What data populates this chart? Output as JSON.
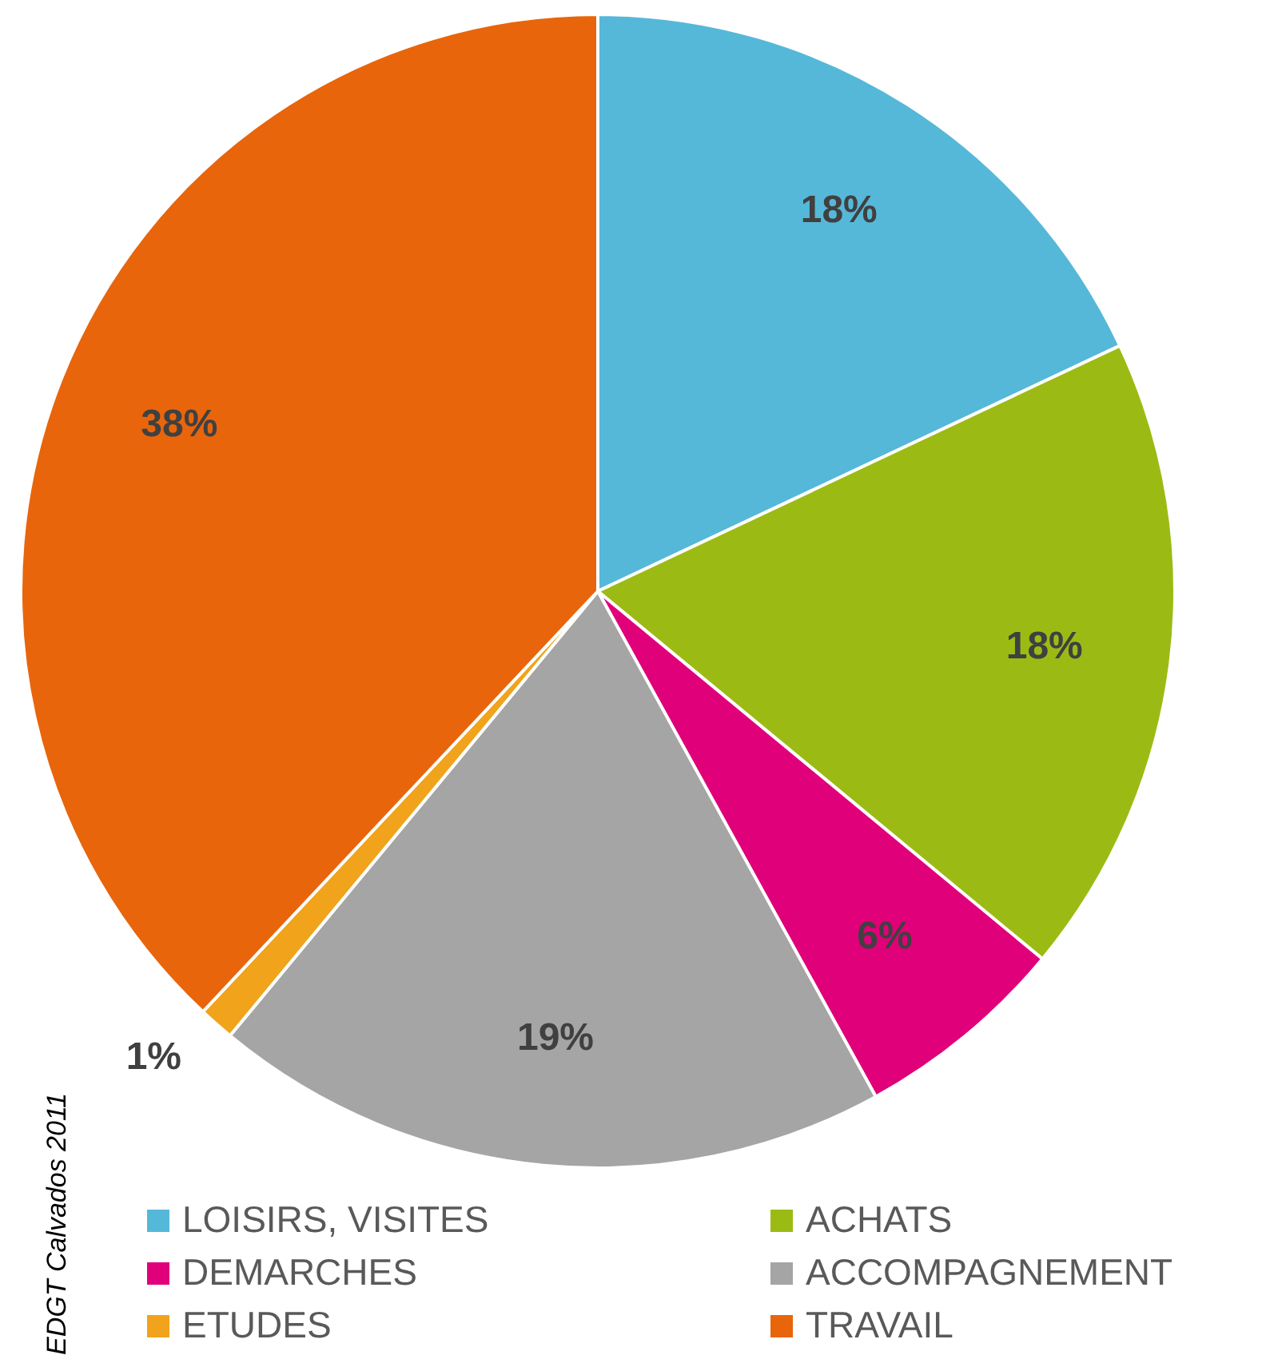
{
  "chart_data": {
    "type": "pie",
    "categories": [
      "LOISIRS, VISITES",
      "ACHATS",
      "DEMARCHES",
      "ACCOMPAGNEMENT",
      "ETUDES",
      "TRAVAIL"
    ],
    "values": [
      18,
      18,
      6,
      19,
      1,
      38
    ],
    "value_labels": [
      "18%",
      "18%",
      "6%",
      "19%",
      "1%",
      "38%"
    ],
    "colors": [
      "#56b8d8",
      "#9bbb14",
      "#e0007a",
      "#a5a5a5",
      "#f0a31b",
      "#e8650c"
    ],
    "legend": "bottom",
    "annotations": [
      "EDGT Calvados 2011"
    ]
  }
}
